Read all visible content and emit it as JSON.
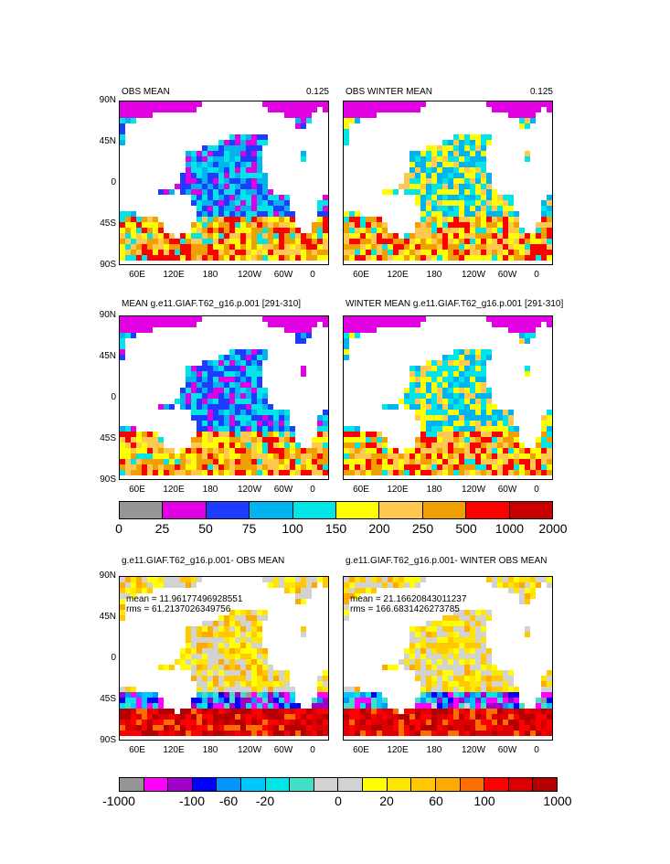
{
  "panels": [
    {
      "title": "OBS MEAN",
      "right": "0.125",
      "stats": null
    },
    {
      "title": "OBS WINTER MEAN",
      "right": "0.125",
      "stats": null
    },
    {
      "title": "MEAN g.e11.GIAF.T62_g16.p.001 [291-310]",
      "right": "",
      "stats": null
    },
    {
      "title": "WINTER MEAN g.e11.GIAF.T62_g16.p.001 [291-310]",
      "right": "",
      "stats": null
    },
    {
      "title": "g.e11.GIAF.T62_g16.p.001- OBS MEAN",
      "right": "",
      "stats": {
        "mean": "mean = 11.96177496928551",
        "rms": "rms = 61.2137026349756"
      }
    },
    {
      "title": "g.e11.GIAF.T62_g16.p.001- WINTER OBS MEAN",
      "right": "",
      "stats": {
        "mean": "mean = 21.16620843011237",
        "rms": "rms = 166.6831426273785"
      }
    }
  ],
  "lat_labels": [
    "90N",
    "45N",
    "0",
    "45S",
    "90S"
  ],
  "lon_labels": [
    "60E",
    "120E",
    "180",
    "120W",
    "60W",
    "0"
  ],
  "colorbar1": {
    "colors": [
      "#969696",
      "#e100e1",
      "#1e3cff",
      "#00b4f0",
      "#00e6e6",
      "#ffff00",
      "#ffc850",
      "#f0a000",
      "#ff0000",
      "#c80000"
    ],
    "labels": [
      "0",
      "25",
      "50",
      "75",
      "100",
      "150",
      "200",
      "250",
      "500",
      "1000",
      "2000"
    ]
  },
  "colorbar2": {
    "colors": [
      "#969696",
      "#ff00ff",
      "#a000c8",
      "#0000ff",
      "#0096ff",
      "#00c8ff",
      "#00e6e6",
      "#40e0c8",
      "#d2d2d2",
      "#d2d2d2",
      "#ffff00",
      "#ffe600",
      "#ffc800",
      "#ffaa00",
      "#ff6e00",
      "#ff0000",
      "#dc0000",
      "#b40000"
    ],
    "labels": [
      "-1000",
      "-100",
      "-60",
      "-20",
      "0",
      "20",
      "60",
      "100",
      "1000"
    ]
  }
}
